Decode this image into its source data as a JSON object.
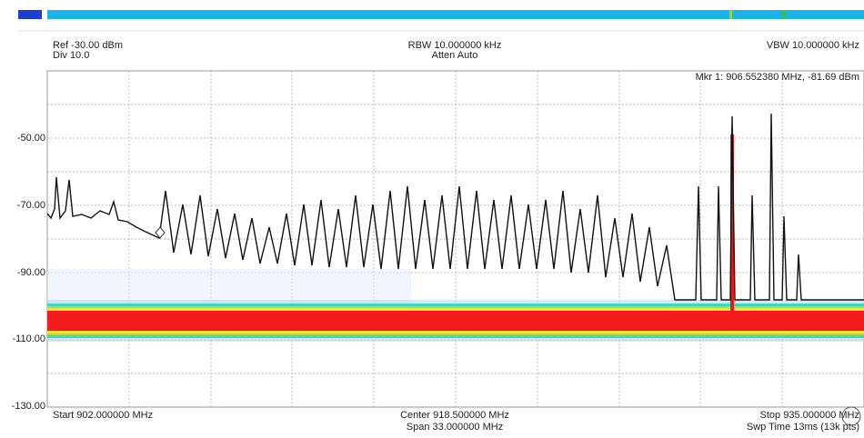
{
  "header": {
    "ref": "Ref -30.00 dBm",
    "div": "Div 10.0",
    "rbw": "RBW 10.000000 kHz",
    "atten": "Atten Auto",
    "vbw": "VBW 10.000000 kHz"
  },
  "marker": "Mkr 1: 906.552380 MHz, -81.69 dBm",
  "y_labels": [
    "-50.00",
    "-70.00",
    "-90.00",
    "-110.00",
    "-130.00"
  ],
  "footer": {
    "start": "Start 902.000000 MHz",
    "center": "Center 918.500000 MHz",
    "span": "Span 33.000000 MHz",
    "stop": "Stop 935.000000 MHz",
    "sweep": "Swp Time 13ms (13k pts)"
  }
}
